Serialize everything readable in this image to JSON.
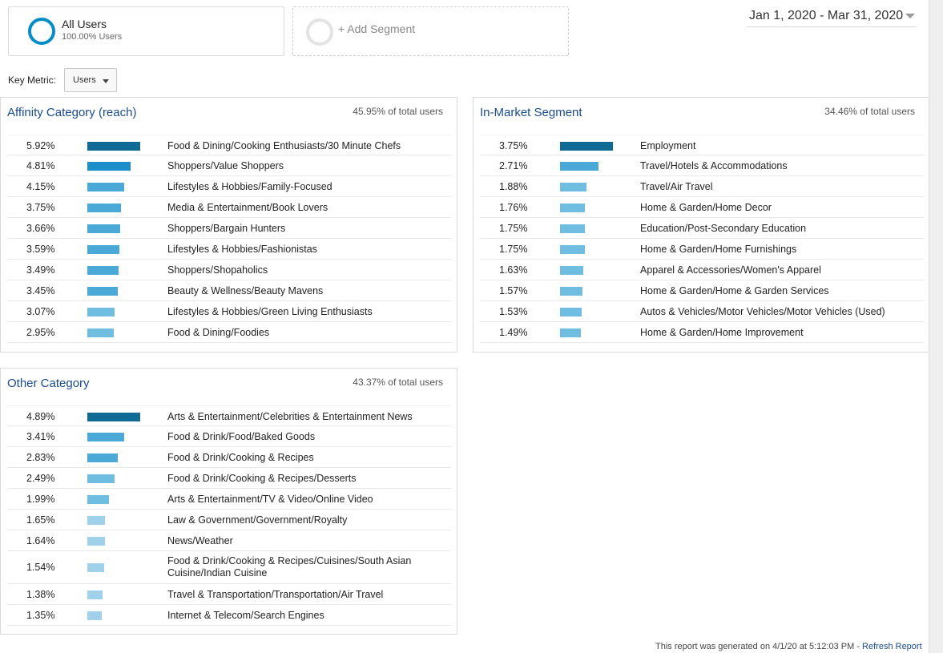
{
  "segments": {
    "all": {
      "title": "All Users",
      "subtitle": "100.00% Users",
      "color": "#058dc7"
    },
    "add": {
      "label": "+ Add Segment"
    }
  },
  "date_range": "Jan 1, 2020 - Mar 31, 2020",
  "key_metric": {
    "label": "Key Metric:",
    "value": "Users"
  },
  "panels": [
    {
      "title": "Affinity Category (reach)",
      "total": "45.95% of total users",
      "rows": [
        {
          "pct": "5.92%",
          "value": 5.92,
          "label": "Food & Dining/Cooking Enthusiasts/30 Minute Chefs"
        },
        {
          "pct": "4.81%",
          "value": 4.81,
          "label": "Shoppers/Value Shoppers"
        },
        {
          "pct": "4.15%",
          "value": 4.15,
          "label": "Lifestyles & Hobbies/Family-Focused"
        },
        {
          "pct": "3.75%",
          "value": 3.75,
          "label": "Media & Entertainment/Book Lovers"
        },
        {
          "pct": "3.66%",
          "value": 3.66,
          "label": "Shoppers/Bargain Hunters"
        },
        {
          "pct": "3.59%",
          "value": 3.59,
          "label": "Lifestyles & Hobbies/Fashionistas"
        },
        {
          "pct": "3.49%",
          "value": 3.49,
          "label": "Shoppers/Shopaholics"
        },
        {
          "pct": "3.45%",
          "value": 3.45,
          "label": "Beauty & Wellness/Beauty Mavens"
        },
        {
          "pct": "3.07%",
          "value": 3.07,
          "label": "Lifestyles & Hobbies/Green Living Enthusiasts"
        },
        {
          "pct": "2.95%",
          "value": 2.95,
          "label": "Food & Dining/Foodies"
        }
      ]
    },
    {
      "title": "In-Market Segment",
      "total": "34.46% of total users",
      "rows": [
        {
          "pct": "3.75%",
          "value": 3.75,
          "label": "Employment"
        },
        {
          "pct": "2.71%",
          "value": 2.71,
          "label": "Travel/Hotels & Accommodations"
        },
        {
          "pct": "1.88%",
          "value": 1.88,
          "label": "Travel/Air Travel"
        },
        {
          "pct": "1.76%",
          "value": 1.76,
          "label": "Home & Garden/Home Decor"
        },
        {
          "pct": "1.75%",
          "value": 1.75,
          "label": "Education/Post-Secondary Education"
        },
        {
          "pct": "1.75%",
          "value": 1.75,
          "label": "Home & Garden/Home Furnishings"
        },
        {
          "pct": "1.63%",
          "value": 1.63,
          "label": "Apparel & Accessories/Women's Apparel"
        },
        {
          "pct": "1.57%",
          "value": 1.57,
          "label": "Home & Garden/Home & Garden Services"
        },
        {
          "pct": "1.53%",
          "value": 1.53,
          "label": "Autos & Vehicles/Motor Vehicles/Motor Vehicles (Used)"
        },
        {
          "pct": "1.49%",
          "value": 1.49,
          "label": "Home & Garden/Home Improvement"
        }
      ]
    },
    {
      "title": "Other Category",
      "total": "43.37% of total users",
      "rows": [
        {
          "pct": "4.89%",
          "value": 4.89,
          "label": "Arts & Entertainment/Celebrities & Entertainment News"
        },
        {
          "pct": "3.41%",
          "value": 3.41,
          "label": "Food & Drink/Food/Baked Goods"
        },
        {
          "pct": "2.83%",
          "value": 2.83,
          "label": "Food & Drink/Cooking & Recipes"
        },
        {
          "pct": "2.49%",
          "value": 2.49,
          "label": "Food & Drink/Cooking & Recipes/Desserts"
        },
        {
          "pct": "1.99%",
          "value": 1.99,
          "label": "Arts & Entertainment/TV & Video/Online Video"
        },
        {
          "pct": "1.65%",
          "value": 1.65,
          "label": "Law & Government/Government/Royalty"
        },
        {
          "pct": "1.64%",
          "value": 1.64,
          "label": "News/Weather"
        },
        {
          "pct": "1.54%",
          "value": 1.54,
          "label": "Food & Drink/Cooking & Recipes/Cuisines/South Asian Cuisine/Indian Cuisine"
        },
        {
          "pct": "1.38%",
          "value": 1.38,
          "label": "Travel & Transportation/Transportation/Air Travel"
        },
        {
          "pct": "1.35%",
          "value": 1.35,
          "label": "Internet & Telecom/Search Engines"
        }
      ]
    }
  ],
  "bar_colors": [
    "#0f6b96",
    "#1d8fc8",
    "#4aa9d6",
    "#6fbde0",
    "#9fd1ea"
  ],
  "footer": {
    "text": "This report was generated on 4/1/20 at 5:12:03 PM - ",
    "link": "Refresh Report"
  }
}
